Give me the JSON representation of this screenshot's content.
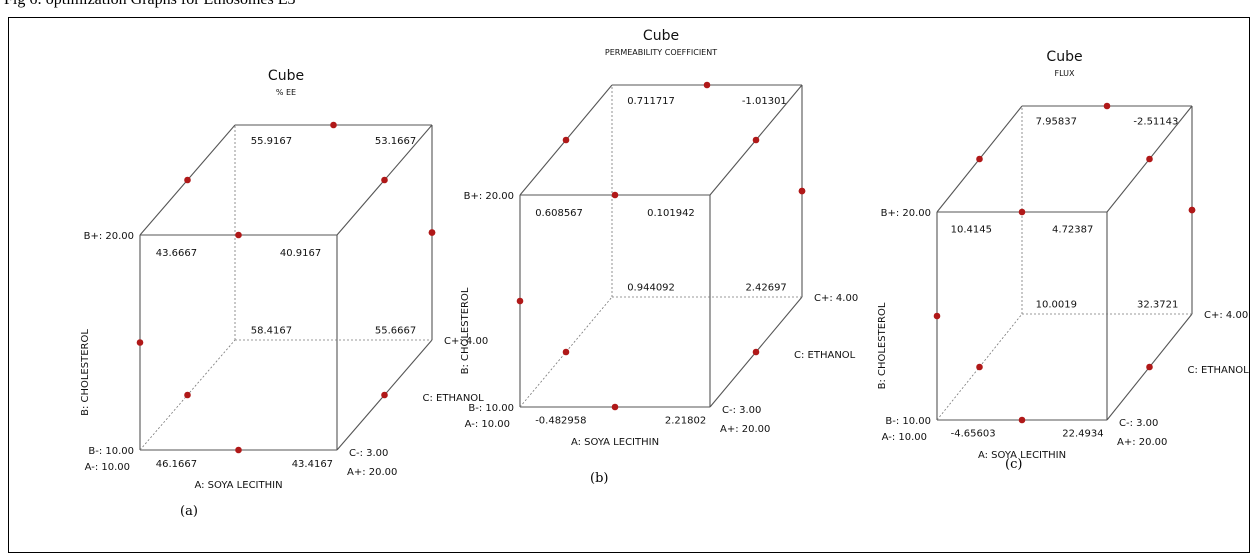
{
  "page": {
    "caption": "Fig 6: optimization Graphs for Ethosomes E3"
  },
  "chart_data": [
    {
      "type": "cube",
      "title": "Cube",
      "subtitle": "% EE",
      "panel_label": "(a)",
      "factors": {
        "A": {
          "name": "A: SOYA LECITHIN",
          "low": "A-: 10.00",
          "high": "A+: 20.00"
        },
        "B": {
          "name": "B: CHOLESTEROL",
          "low": "B-: 10.00",
          "high": "B+: 20.00"
        },
        "C": {
          "name": "C: ETHANOL",
          "low": "C-: 3.00",
          "high": "C+: 4.00"
        }
      },
      "corners": {
        "A-B-C-": "46.1667",
        "A+B-C-": "43.4167",
        "A-B+C-": "43.6667",
        "A+B+C-": "40.9167",
        "A-B-C+": "58.4167",
        "A+B-C+": "55.6667",
        "A-B+C+": "55.9167",
        "A+B+C+": "53.1667"
      }
    },
    {
      "type": "cube",
      "title": "Cube",
      "subtitle": "PERMEABILITY COEFFICIENT",
      "panel_label": "(b)",
      "factors": {
        "A": {
          "name": "A: SOYA LECITHIN",
          "low": "A-: 10.00",
          "high": "A+: 20.00"
        },
        "B": {
          "name": "B: CHOLESTEROL",
          "low": "B-: 10.00",
          "high": "B+: 20.00"
        },
        "C": {
          "name": "C: ETHANOL",
          "low": "C-: 3.00",
          "high": "C+: 4.00"
        }
      },
      "corners": {
        "A-B-C-": "-0.482958",
        "A+B-C-": "2.21802",
        "A-B+C-": "0.608567",
        "A+B+C-": "0.101942",
        "A-B-C+": "0.944092",
        "A+B-C+": "2.42697",
        "A-B+C+": "0.711717",
        "A+B+C+": "-1.01301"
      }
    },
    {
      "type": "cube",
      "title": "Cube",
      "subtitle": "FLUX",
      "panel_label": "(c)",
      "factors": {
        "A": {
          "name": "A: SOYA LECITHIN",
          "low": "A-: 10.00",
          "high": "A+: 20.00"
        },
        "B": {
          "name": "B: CHOLESTEROL",
          "low": "B-: 10.00",
          "high": "B+: 20.00"
        },
        "C": {
          "name": "C: ETHANOL",
          "low": "C-: 3.00",
          "high": "C+: 4.00"
        }
      },
      "corners": {
        "A-B-C-": "-4.65603",
        "A+B-C-": "22.4934",
        "A-B+C-": "10.4145",
        "A+B+C-": "4.72387",
        "A-B-C+": "10.0019",
        "A+B-C+": "32.3721",
        "A-B+C+": "7.95837",
        "A+B+C+": "-2.51143"
      }
    }
  ]
}
